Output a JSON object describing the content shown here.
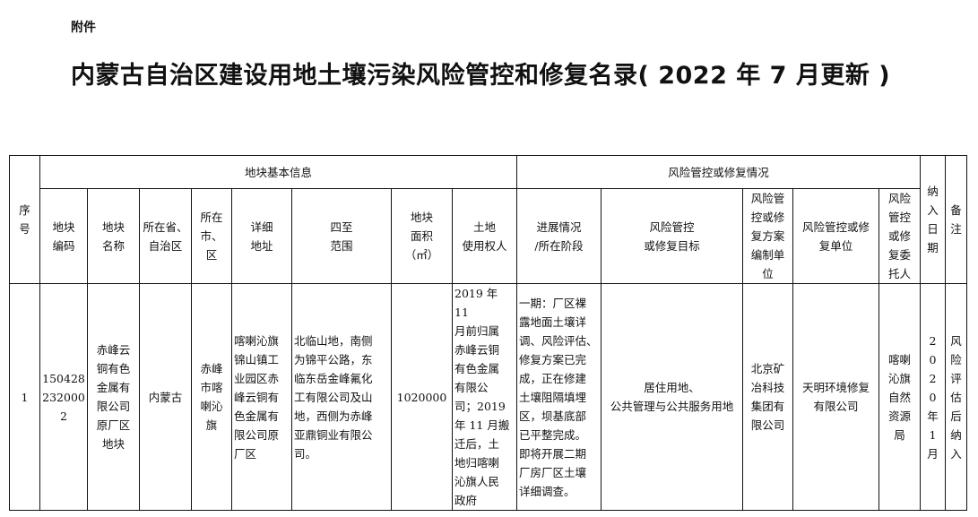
{
  "attachment_label": "附件",
  "title": "内蒙古自治区建设用地土壤污染风险管控和修复名录( 2022 年 7 月更新 )",
  "table": {
    "seq_header": "序\n号",
    "group_basic": "地块基本信息",
    "group_risk": "风险管控或修复情况",
    "date_header": "纳\n入\n日\n期",
    "remark_header": "备\n注",
    "headers": [
      "地块\n编码",
      "地块\n名称",
      "所在省、\n自治区",
      "所在\n市、\n区",
      "详细\n地址",
      "四至\n范围",
      "地块\n面积\n（㎡）",
      "土地\n使用权人",
      "进展情况\n/所在阶段",
      "风险管控\n或修复目标",
      "风险管\n控或修\n复方案\n编制单\n位",
      "风险管控或修\n复单位",
      "风险\n管控\n或修\n复委\n托人"
    ],
    "rows": [
      {
        "seq": "1",
        "cells": [
          "150428\n232000\n2",
          "赤峰云\n铜有色\n金属有\n限公司\n原厂区\n地块",
          "内蒙古",
          "赤峰\n市喀\n喇沁\n旗",
          "喀喇沁旗\n锦山镇工\n业园区赤\n峰云铜有\n色金属有\n限公司原\n厂区",
          "北临山地，南侧\n为锦平公路，东\n临东岳金峰氟化\n工有限公司及山\n地，西侧为赤峰\n亚鼎铜业有限公\n司。",
          "1020000",
          "2019 年 11\n月前归属\n赤峰云铜\n有色金属\n有限公\n司；2019\n年 11 月搬\n迁后，土\n地归喀喇\n沁旗人民\n政府",
          "一期：厂区裸\n露地面土壤详\n调、风险评估、\n修复方案已完\n成，正在修建\n土壤阻隔填埋\n区，坝基底部\n已平整完成。\n即将开展二期\n厂房厂区土壤\n详细调查。",
          "居住用地、\n公共管理与公共服务用地",
          "北京矿\n冶科技\n集团有\n限公司",
          "天明环境修复\n有限公司",
          "喀喇\n沁旗\n自然\n资源\n局"
        ],
        "date": "2\n0\n2\n0\n年\n1\n月",
        "remark": "风\n险\n评\n估\n后\n纳\n入"
      }
    ]
  }
}
